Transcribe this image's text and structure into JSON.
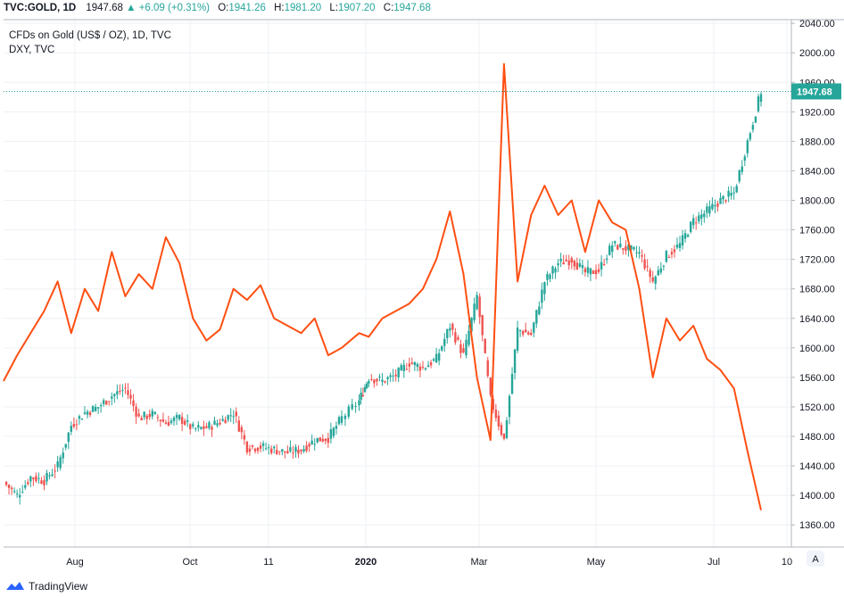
{
  "header": {
    "symbol": "TVC:GOLD, 1D",
    "last": "1947.68",
    "change": "+6.09 (+0.31%)",
    "o_label": "O:",
    "o_value": "1941.26",
    "h_label": "H:",
    "h_value": "1981.20",
    "l_label": "L:",
    "l_value": "1907.20",
    "c_label": "C:",
    "c_value": "1947.68"
  },
  "legend": {
    "main": "CFDs on Gold (US$ / OZ), 1D, TVC",
    "overlay": "DXY, TVC"
  },
  "brand": "TradingView",
  "colors": {
    "up": "#26a69a",
    "down": "#ef5350",
    "overlay": "#ff4f12",
    "grid": "#eef0f4",
    "axis": "#b2b5be"
  },
  "chart_data": {
    "type": "line",
    "y_axis": {
      "ticks": [
        "2040.00",
        "2000.00",
        "1960.00",
        "1920.00",
        "1880.00",
        "1840.00",
        "1800.00",
        "1760.00",
        "1720.00",
        "1680.00",
        "1640.00",
        "1600.00",
        "1560.00",
        "1520.00",
        "1480.00",
        "1440.00",
        "1400.00",
        "1360.00"
      ],
      "range": [
        1330,
        2045
      ],
      "last_price_label": "1947.68"
    },
    "x_axis": {
      "ticks": [
        "Aug",
        "Oct",
        "11",
        "2020",
        "Mar",
        "May",
        "Jul",
        "10"
      ],
      "scale_button": "A"
    },
    "series": [
      {
        "name": "CFDs on Gold (US$ / OZ), 1D, TVC",
        "style": "candles",
        "close_path": [
          [
            "2019-07-01",
            1418
          ],
          [
            "2019-07-08",
            1400
          ],
          [
            "2019-07-15",
            1425
          ],
          [
            "2019-07-22",
            1420
          ],
          [
            "2019-07-29",
            1440
          ],
          [
            "2019-08-05",
            1495
          ],
          [
            "2019-08-12",
            1512
          ],
          [
            "2019-08-19",
            1520
          ],
          [
            "2019-08-26",
            1535
          ],
          [
            "2019-09-02",
            1545
          ],
          [
            "2019-09-09",
            1505
          ],
          [
            "2019-09-16",
            1510
          ],
          [
            "2019-09-23",
            1498
          ],
          [
            "2019-09-30",
            1505
          ],
          [
            "2019-10-07",
            1490
          ],
          [
            "2019-10-14",
            1492
          ],
          [
            "2019-10-21",
            1500
          ],
          [
            "2019-10-28",
            1512
          ],
          [
            "2019-11-04",
            1465
          ],
          [
            "2019-11-11",
            1466
          ],
          [
            "2019-11-18",
            1462
          ],
          [
            "2019-11-25",
            1458
          ],
          [
            "2019-12-02",
            1462
          ],
          [
            "2019-12-09",
            1475
          ],
          [
            "2019-12-16",
            1478
          ],
          [
            "2019-12-23",
            1505
          ],
          [
            "2020-01-01",
            1528
          ],
          [
            "2020-01-06",
            1560
          ],
          [
            "2020-01-13",
            1555
          ],
          [
            "2020-01-20",
            1563
          ],
          [
            "2020-01-27",
            1580
          ],
          [
            "2020-02-03",
            1573
          ],
          [
            "2020-02-10",
            1585
          ],
          [
            "2020-02-17",
            1630
          ],
          [
            "2020-02-24",
            1590
          ],
          [
            "2020-03-02",
            1670
          ],
          [
            "2020-03-09",
            1530
          ],
          [
            "2020-03-16",
            1475
          ],
          [
            "2020-03-23",
            1625
          ],
          [
            "2020-03-30",
            1618
          ],
          [
            "2020-04-06",
            1690
          ],
          [
            "2020-04-13",
            1715
          ],
          [
            "2020-04-20",
            1720
          ],
          [
            "2020-04-27",
            1702
          ],
          [
            "2020-05-04",
            1705
          ],
          [
            "2020-05-11",
            1740
          ],
          [
            "2020-05-18",
            1735
          ],
          [
            "2020-05-25",
            1728
          ],
          [
            "2020-06-01",
            1690
          ],
          [
            "2020-06-08",
            1725
          ],
          [
            "2020-06-15",
            1740
          ],
          [
            "2020-06-22",
            1772
          ],
          [
            "2020-06-29",
            1785
          ],
          [
            "2020-07-06",
            1800
          ],
          [
            "2020-07-13",
            1810
          ],
          [
            "2020-07-20",
            1880
          ],
          [
            "2020-07-27",
            1947.68
          ]
        ]
      },
      {
        "name": "DXY, TVC",
        "style": "line",
        "close_path": [
          [
            "2019-07-01",
            1555
          ],
          [
            "2019-07-08",
            1590
          ],
          [
            "2019-07-15",
            1620
          ],
          [
            "2019-07-22",
            1650
          ],
          [
            "2019-07-29",
            1690
          ],
          [
            "2019-08-05",
            1620
          ],
          [
            "2019-08-12",
            1680
          ],
          [
            "2019-08-19",
            1650
          ],
          [
            "2019-08-26",
            1730
          ],
          [
            "2019-09-02",
            1670
          ],
          [
            "2019-09-09",
            1700
          ],
          [
            "2019-09-16",
            1680
          ],
          [
            "2019-09-23",
            1750
          ],
          [
            "2019-09-30",
            1715
          ],
          [
            "2019-10-07",
            1640
          ],
          [
            "2019-10-14",
            1610
          ],
          [
            "2019-10-21",
            1625
          ],
          [
            "2019-10-28",
            1680
          ],
          [
            "2019-11-04",
            1665
          ],
          [
            "2019-11-11",
            1685
          ],
          [
            "2019-11-18",
            1640
          ],
          [
            "2019-11-25",
            1630
          ],
          [
            "2019-12-02",
            1620
          ],
          [
            "2019-12-09",
            1640
          ],
          [
            "2019-12-16",
            1590
          ],
          [
            "2019-12-23",
            1600
          ],
          [
            "2020-01-01",
            1620
          ],
          [
            "2020-01-06",
            1615
          ],
          [
            "2020-01-13",
            1640
          ],
          [
            "2020-01-20",
            1650
          ],
          [
            "2020-01-27",
            1660
          ],
          [
            "2020-02-03",
            1680
          ],
          [
            "2020-02-10",
            1720
          ],
          [
            "2020-02-17",
            1785
          ],
          [
            "2020-02-24",
            1700
          ],
          [
            "2020-03-02",
            1560
          ],
          [
            "2020-03-09",
            1475
          ],
          [
            "2020-03-16",
            1985
          ],
          [
            "2020-03-23",
            1690
          ],
          [
            "2020-03-30",
            1780
          ],
          [
            "2020-04-06",
            1820
          ],
          [
            "2020-04-13",
            1780
          ],
          [
            "2020-04-20",
            1800
          ],
          [
            "2020-04-27",
            1730
          ],
          [
            "2020-05-04",
            1800
          ],
          [
            "2020-05-11",
            1770
          ],
          [
            "2020-05-18",
            1760
          ],
          [
            "2020-05-25",
            1680
          ],
          [
            "2020-06-01",
            1560
          ],
          [
            "2020-06-08",
            1640
          ],
          [
            "2020-06-15",
            1610
          ],
          [
            "2020-06-22",
            1630
          ],
          [
            "2020-06-29",
            1585
          ],
          [
            "2020-07-06",
            1570
          ],
          [
            "2020-07-13",
            1545
          ],
          [
            "2020-07-20",
            1460
          ],
          [
            "2020-07-27",
            1380
          ]
        ]
      }
    ],
    "grid": true,
    "legend": "top-left"
  }
}
